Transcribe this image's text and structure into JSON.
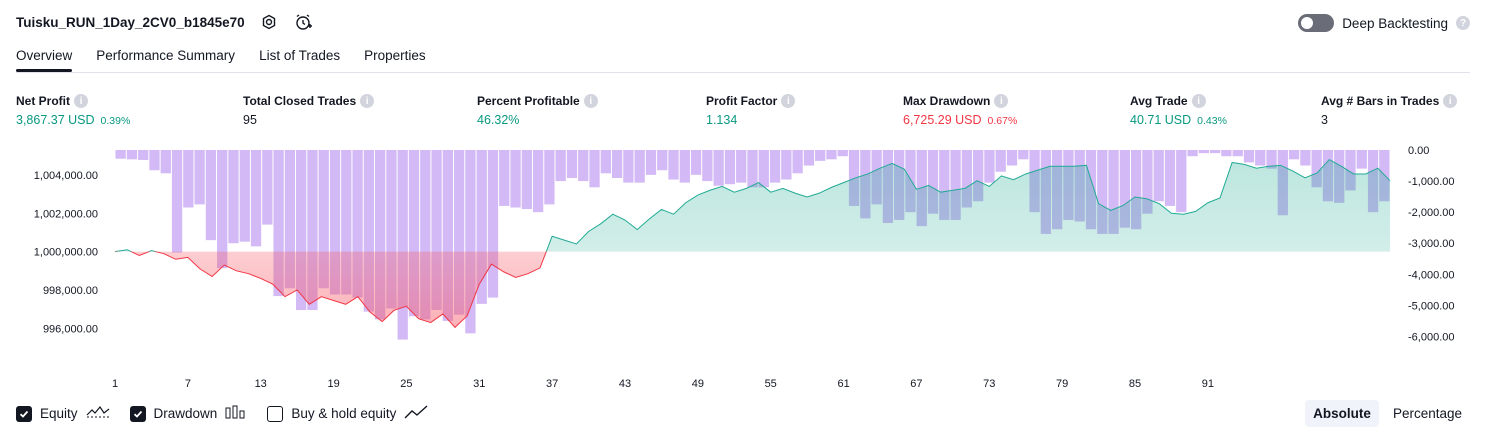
{
  "header": {
    "strategy_name": "Tuisku_RUN_1Day_2CV0_b1845e70",
    "icons": [
      "settings-icon",
      "alarm-add-icon"
    ]
  },
  "deep_backtesting": {
    "label": "Deep Backtesting",
    "enabled": false,
    "help_icon": "question-icon"
  },
  "tabs": [
    {
      "label": "Overview",
      "active": true
    },
    {
      "label": "Performance Summary",
      "active": false
    },
    {
      "label": "List of Trades",
      "active": false
    },
    {
      "label": "Properties",
      "active": false
    }
  ],
  "metrics": [
    {
      "label": "Net Profit",
      "value": "3,867.37 USD",
      "pct": "0.39%",
      "color": "green"
    },
    {
      "label": "Total Closed Trades",
      "value": "95",
      "pct": "",
      "color": "dark"
    },
    {
      "label": "Percent Profitable",
      "value": "46.32%",
      "pct": "",
      "color": "green"
    },
    {
      "label": "Profit Factor",
      "value": "1.134",
      "pct": "",
      "color": "green"
    },
    {
      "label": "Max Drawdown",
      "value": "6,725.29 USD",
      "pct": "0.67%",
      "color": "red"
    },
    {
      "label": "Avg Trade",
      "value": "40.71 USD",
      "pct": "0.43%",
      "color": "green"
    },
    {
      "label": "Avg # Bars in Trades",
      "value": "3",
      "pct": "",
      "color": "dark"
    }
  ],
  "chart_data": {
    "type": "area",
    "baseline": 1000000,
    "left_axis": {
      "ticks": [
        "1,004,000.00",
        "1,002,000.00",
        "1,000,000.00",
        "998,000.00",
        "996,000.00"
      ],
      "values": [
        1004000,
        1002000,
        1000000,
        998000,
        996000
      ],
      "range": [
        994400,
        1005300
      ]
    },
    "right_axis": {
      "ticks": [
        "0.00",
        "-1,000.00",
        "-2,000.00",
        "-3,000.00",
        "-4,000.00",
        "-5,000.00",
        "-6,000.00"
      ],
      "values": [
        0,
        -1000,
        -2000,
        -3000,
        -4000,
        -5000,
        -6000
      ],
      "range": [
        -6725.29,
        0
      ]
    },
    "x_ticks": [
      "1",
      "7",
      "13",
      "19",
      "25",
      "31",
      "37",
      "43",
      "49",
      "55",
      "61",
      "67",
      "73",
      "79",
      "85",
      "91"
    ],
    "trades": 96,
    "equity": [
      1000000,
      1000100,
      999800,
      1000050,
      999900,
      999600,
      999700,
      999100,
      998700,
      999300,
      999000,
      998850,
      998600,
      998300,
      997650,
      998000,
      997250,
      997650,
      997450,
      997250,
      997650,
      996850,
      996350,
      996950,
      997150,
      996500,
      996300,
      996750,
      996050,
      996650,
      998300,
      999350,
      998950,
      998650,
      998850,
      999150,
      1000800,
      1000600,
      1000400,
      1001050,
      1001450,
      1001950,
      1001650,
      1001150,
      1001700,
      1002200,
      1001950,
      1002550,
      1002950,
      1003200,
      1003400,
      1003100,
      1003300,
      1003600,
      1003100,
      1003300,
      1003050,
      1002850,
      1003050,
      1003350,
      1003600,
      1003850,
      1004050,
      1004350,
      1004600,
      1004300,
      1003250,
      1003450,
      1003100,
      1003200,
      1003300,
      1003700,
      1003400,
      1003950,
      1003750,
      1004050,
      1004250,
      1004450,
      1004450,
      1004450,
      1004500,
      1002500,
      1002150,
      1002400,
      1002850,
      1002750,
      1002500,
      1002000,
      1001950,
      1002100,
      1002550,
      1002800,
      1004650,
      1004550,
      1004350,
      1004450,
      1004500,
      1004200,
      1003850,
      1004100,
      1004800,
      1004450,
      1004050,
      1004050,
      1004350,
      1003700
    ],
    "drawdown": [
      -280,
      -300,
      -320,
      -650,
      -750,
      -3300,
      -1850,
      -1750,
      -2900,
      -3800,
      -3000,
      -2950,
      -3100,
      -2400,
      -4700,
      -4450,
      -5150,
      -5150,
      -4450,
      -4650,
      -4650,
      -4750,
      -5200,
      -5450,
      -5100,
      -6100,
      -5350,
      -5450,
      -5150,
      -5500,
      -5300,
      -5900,
      -4950,
      -4750,
      -1800,
      -1850,
      -1900,
      -2000,
      -1750,
      -1000,
      -900,
      -1000,
      -1200,
      -750,
      -900,
      -1050,
      -1050,
      -800,
      -650,
      -950,
      -1050,
      -800,
      -1000,
      -1150,
      -1100,
      -1050,
      -1200,
      -1200,
      -1050,
      -950,
      -750,
      -500,
      -350,
      -300,
      -200,
      -1800,
      -2200,
      -1750,
      -2350,
      -2250,
      -2000,
      -2450,
      -2050,
      -2250,
      -2250,
      -1850,
      -1650,
      -1050,
      -700,
      -500,
      -300,
      -2000,
      -2700,
      -2550,
      -2250,
      -2300,
      -2550,
      -2700,
      -2700,
      -2500,
      -2550,
      -2050,
      -1650,
      -1800,
      -2000,
      -200,
      -100,
      -100,
      -200,
      -200,
      -400,
      -500,
      -600,
      -2100,
      -300,
      -500,
      -1200,
      -1650,
      -1700,
      -1300,
      -600,
      -2000,
      -1650
    ],
    "colors": {
      "profit_line": "#22ab94",
      "loss_line": "#f23645",
      "drawdown_bars": "#c29ef1",
      "profit_fill": "#22ab94",
      "loss_fill": "#f7525f"
    }
  },
  "footer": {
    "legend": [
      {
        "label": "Equity",
        "checked": true,
        "icon": "equity-line-icon"
      },
      {
        "label": "Drawdown",
        "checked": true,
        "icon": "drawdown-bars-icon"
      },
      {
        "label": "Buy & hold equity",
        "checked": false,
        "icon": "buy-hold-line-icon"
      }
    ],
    "view_toggle": [
      {
        "label": "Absolute",
        "active": true
      },
      {
        "label": "Percentage",
        "active": false
      }
    ]
  }
}
